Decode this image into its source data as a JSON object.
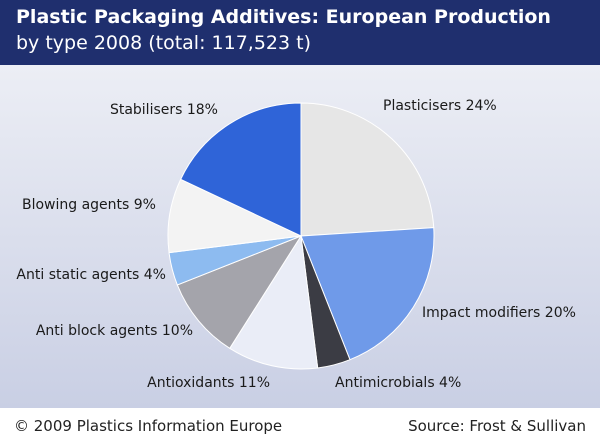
{
  "header": {
    "title": "Plastic Packaging Additives: European Production",
    "subtitle": "by type 2008 (total: 117,523 t)"
  },
  "footer": {
    "copyright": "© 2009 Plastics Information Europe",
    "source": "Source: Frost & Sullivan"
  },
  "chart_data": {
    "type": "pie",
    "unit": "%",
    "start": "12 o'clock",
    "direction": "clockwise",
    "slices": [
      {
        "label": "Plasticisers",
        "display": "Plasticisers 24%",
        "value": 24,
        "color": "#e6e6e6"
      },
      {
        "label": "Impact modifiers",
        "display": "Impact modifiers 20%",
        "value": 20,
        "color": "#6f9ae9"
      },
      {
        "label": "Antimicrobials",
        "display": "Antimicrobials 4%",
        "value": 4,
        "color": "#3b3c44"
      },
      {
        "label": "Antioxidants",
        "display": "Antioxidants 11%",
        "value": 11,
        "color": "#eaedf7"
      },
      {
        "label": "Anti block agents",
        "display": "Anti block agents 10%",
        "value": 10,
        "color": "#a4a4ab"
      },
      {
        "label": "Anti static agents",
        "display": "Anti static agents 4%",
        "value": 4,
        "color": "#8dbbf0"
      },
      {
        "label": "Blowing agents",
        "display": "Blowing agents 9%",
        "value": 9,
        "color": "#f3f3f3"
      },
      {
        "label": "Stabilisers",
        "display": "Stabilisers 18%",
        "value": 18,
        "color": "#2f64d8"
      }
    ]
  }
}
